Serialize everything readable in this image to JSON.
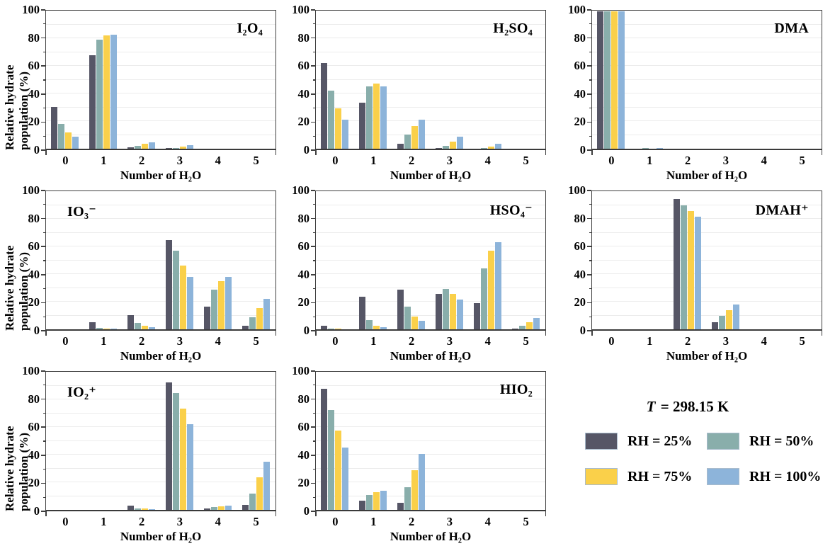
{
  "figure": {
    "temperature": {
      "symbol": "T",
      "rest": " = 298.15 K"
    },
    "legend": {
      "items": [
        {
          "label": "RH = 25%",
          "color": "#565666"
        },
        {
          "label": "RH = 50%",
          "color": "#89aeab"
        },
        {
          "label": "RH = 75%",
          "color": "#fad04a"
        },
        {
          "label": "RH = 100%",
          "color": "#8db4da"
        }
      ]
    }
  },
  "chart_data": {
    "type": "bar",
    "categories": [
      "0",
      "1",
      "2",
      "3",
      "4",
      "5"
    ],
    "xlabel": "Number of H₂O",
    "ylabel": "Relative hydrate population (%)",
    "ylim": [
      0,
      100
    ],
    "yticks": [
      0,
      20,
      40,
      60,
      80,
      100
    ],
    "minor_yticks": [
      10,
      30,
      50,
      70,
      90
    ],
    "grid": "horizontal gridlines every 10, light gray",
    "legend_position": "separate panel bottom-right",
    "series_names": [
      "RH = 25%",
      "RH = 50%",
      "RH = 75%",
      "RH = 100%"
    ],
    "series_colors": [
      "#565666",
      "#89aeab",
      "#fad04a",
      "#8db4da"
    ],
    "panels": [
      {
        "id": "i2o4",
        "title": "I₂O₄",
        "title_pos": "right",
        "show_ylabel": true,
        "series": [
          [
            30.5,
            68,
            1,
            0.5,
            0,
            0
          ],
          [
            18,
            79,
            2,
            0.7,
            0,
            0
          ],
          [
            12,
            82.5,
            3.5,
            1.5,
            0,
            0
          ],
          [
            9,
            83,
            4.5,
            2.5,
            0,
            0
          ]
        ]
      },
      {
        "id": "h2so4",
        "title": "H₂SO₄",
        "title_pos": "right",
        "show_ylabel": false,
        "series": [
          [
            62,
            33.5,
            3.5,
            0.3,
            0,
            0
          ],
          [
            42,
            45,
            10.5,
            2,
            0.5,
            0
          ],
          [
            29.5,
            47.5,
            16.5,
            5,
            1.5,
            0
          ],
          [
            21,
            45.5,
            21,
            8.5,
            3.5,
            0
          ]
        ]
      },
      {
        "id": "dma",
        "title": "DMA",
        "title_pos": "right",
        "show_ylabel": false,
        "series": [
          [
            100,
            0,
            0,
            0,
            0,
            0
          ],
          [
            100,
            0.2,
            0,
            0,
            0,
            0
          ],
          [
            100,
            0,
            0,
            0,
            0,
            0
          ],
          [
            100,
            0.7,
            0,
            0,
            0,
            0
          ]
        ]
      },
      {
        "id": "io3",
        "title": "IO₃⁻",
        "title_pos": "left",
        "show_ylabel": true,
        "series": [
          [
            0,
            5,
            10.5,
            65,
            16.5,
            2.5
          ],
          [
            0,
            1,
            4.5,
            57,
            29,
            8.5
          ],
          [
            0,
            0.3,
            2.5,
            46.5,
            35,
            15.5
          ],
          [
            0,
            0.2,
            1.5,
            38,
            38,
            22
          ]
        ]
      },
      {
        "id": "hso4",
        "title": "HSO₄⁻",
        "title_pos": "right",
        "show_ylabel": false,
        "series": [
          [
            2.5,
            23.5,
            29,
            25.5,
            19,
            0.5
          ],
          [
            0.3,
            6.5,
            16.5,
            29.5,
            44,
            2.5
          ],
          [
            0.2,
            2.5,
            9.5,
            25.5,
            57,
            5
          ],
          [
            0,
            1.5,
            6,
            21.5,
            63.5,
            8
          ]
        ]
      },
      {
        "id": "dmah",
        "title": "DMAH⁺",
        "title_pos": "right",
        "show_ylabel": false,
        "series": [
          [
            0,
            0,
            94.5,
            5,
            0,
            0
          ],
          [
            0,
            0,
            90,
            10,
            0,
            0
          ],
          [
            0,
            0,
            86,
            14,
            0,
            0
          ],
          [
            0,
            0,
            82,
            18,
            0,
            0
          ]
        ]
      },
      {
        "id": "io2",
        "title": "IO₂⁺",
        "title_pos": "left",
        "show_ylabel": true,
        "series": [
          [
            0,
            0,
            3,
            92.5,
            1,
            3.5
          ],
          [
            0,
            0,
            1,
            85,
            2,
            12
          ],
          [
            0,
            0,
            1,
            73.5,
            2.5,
            23.5
          ],
          [
            0,
            0,
            0.5,
            62,
            3,
            35
          ]
        ]
      },
      {
        "id": "hio2",
        "title": "HIO₂",
        "title_pos": "right",
        "show_ylabel": false,
        "series": [
          [
            88,
            6.5,
            5,
            0,
            0,
            0
          ],
          [
            72.5,
            11,
            16.5,
            0,
            0,
            0
          ],
          [
            57.5,
            13,
            29,
            0,
            0,
            0
          ],
          [
            45.5,
            14,
            40.5,
            0,
            0,
            0
          ]
        ]
      }
    ]
  }
}
